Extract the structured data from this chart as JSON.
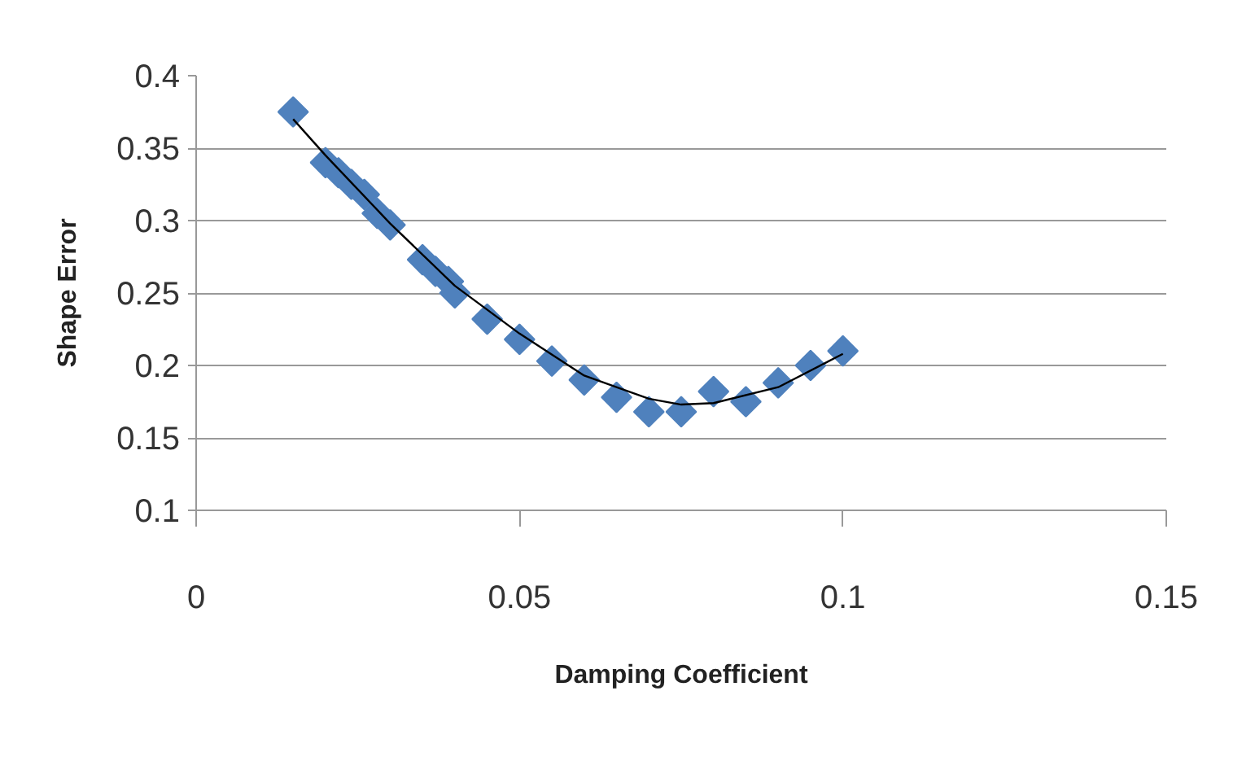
{
  "chart_data": {
    "type": "scatter",
    "xlabel": "Damping Coefficient",
    "ylabel": "Shape Error",
    "xlim": [
      0,
      0.15
    ],
    "xticks": [
      0,
      0.05,
      0.1,
      0.15
    ],
    "ylim": [
      0.1,
      0.4
    ],
    "yticks": [
      0.1,
      0.15,
      0.2,
      0.25,
      0.3,
      0.35,
      0.4
    ],
    "grid": "y",
    "series": [
      {
        "marker": "diamond",
        "color": "#4f81bd",
        "x": [
          0.015,
          0.02,
          0.022,
          0.024,
          0.026,
          0.028,
          0.03,
          0.035,
          0.037,
          0.039,
          0.04,
          0.045,
          0.05,
          0.055,
          0.06,
          0.065,
          0.07,
          0.075,
          0.08,
          0.085,
          0.09,
          0.095,
          0.1
        ],
        "values": [
          0.375,
          0.34,
          0.333,
          0.325,
          0.318,
          0.305,
          0.297,
          0.273,
          0.265,
          0.258,
          0.25,
          0.232,
          0.218,
          0.203,
          0.19,
          0.178,
          0.168,
          0.168,
          0.182,
          0.175,
          0.188,
          0.2,
          0.21
        ]
      },
      {
        "type": "line",
        "color": "#000000",
        "x": [
          0.015,
          0.02,
          0.03,
          0.04,
          0.05,
          0.06,
          0.07,
          0.075,
          0.08,
          0.09,
          0.1
        ],
        "values": [
          0.37,
          0.345,
          0.298,
          0.255,
          0.222,
          0.193,
          0.177,
          0.173,
          0.174,
          0.185,
          0.208
        ]
      }
    ]
  }
}
